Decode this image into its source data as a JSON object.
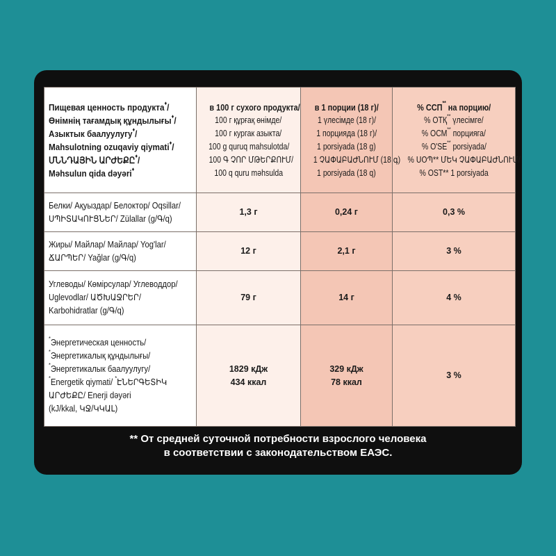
{
  "header": {
    "col1": [
      "Пищевая ценность продукта",
      "Өнімнің тағамдық құндылығы",
      "Азыктык баалуулугу",
      "Mahsulotning ozuqaviy qiymati",
      "ՄՆՆԴԱՅԻՆ ԱՐԺԵՔԸ",
      "Məhsulun qida dəyəri"
    ],
    "col2": [
      "в 100 г сухого продукта/",
      "100 г құрғақ өнімде/",
      "100 г кургак азыкта/",
      "100 g quruq mahsulotda/",
      "100 Գ ՉՈՐ ՄԹԵՐՔՈՒՄ/",
      "100 q quru məhsulda"
    ],
    "col3": [
      "в 1 порции (18 г)/",
      "1 үлесімде (18 г)/",
      "1 порцияда (18 г)/",
      "1 porsiyada (18 g)",
      "1 ՉԱՓԱԲԱԺՆՈՒՄ (18 գ)",
      "1 porsiyada (18 q)"
    ],
    "col4": [
      "% ССП",
      "на порцию/",
      "% ОТҚ",
      "үлесімге/",
      "% ОСМ",
      "порцияга/",
      "% O'SE",
      "porsiyada/",
      "% ՍՕՊ** ՄԵԿ ՉԱՓԱԲԱԺՆՈՒՄ/",
      "% OST** 1 porsiyada"
    ]
  },
  "rows": [
    {
      "label": [
        "Белки/ Ақуыздар/ Белоктор/ Oqsillar/",
        "ՍՊԻՏԱԿՈՒՑՆԵՐ/ Zülallar (g/Գ/q)"
      ],
      "per100": [
        "1,3 г"
      ],
      "perPortion": [
        "0,24 г"
      ],
      "percent": [
        "0,3 %"
      ]
    },
    {
      "label": [
        "Жиры/ Майлар/ Майлар/ Yog'lar/",
        "ՃԱՐՊԵՐ/ Yağlar (g/Գ/q)"
      ],
      "per100": [
        "12 г"
      ],
      "perPortion": [
        "2,1 г"
      ],
      "percent": [
        "3 %"
      ]
    },
    {
      "label": [
        "Углеводы/ Көмірсулар/ Углеводдор/",
        "Uglevodlar/ ԱԾԽԱՋՐԵՐ/",
        "Karbohidratlar (g/Գ/q)"
      ],
      "per100": [
        "79 г"
      ],
      "perPortion": [
        "14 г"
      ],
      "percent": [
        "4 %"
      ]
    },
    {
      "label": [
        "Энергетическая ценность/",
        "Энергетикалық құндылығы/",
        "Энергетикалык баалуулугу/",
        "Energetik qiymati/ ",
        "ԷՆԵՐԳԵՏԻԿ",
        "ԱՐԺԵՔԸ/ Enerji dəyəri",
        "(kJ/kkal, ԿՋ/ԿԿԱԼ)"
      ],
      "per100": [
        "1829 кДж",
        "434 ккал"
      ],
      "perPortion": [
        "329 кДж",
        "78 ккал"
      ],
      "percent": [
        "3 %"
      ]
    }
  ],
  "footnote": [
    "** От средней суточной потребности взрослого человека",
    "в соответствии с законодательством ЕАЭС."
  ],
  "colors": {
    "background": "#1e8f96",
    "panel": "#0f0f0f",
    "col2": "#fdf0ea",
    "col3": "#f4c6b5",
    "col4": "#f7cfbf"
  }
}
